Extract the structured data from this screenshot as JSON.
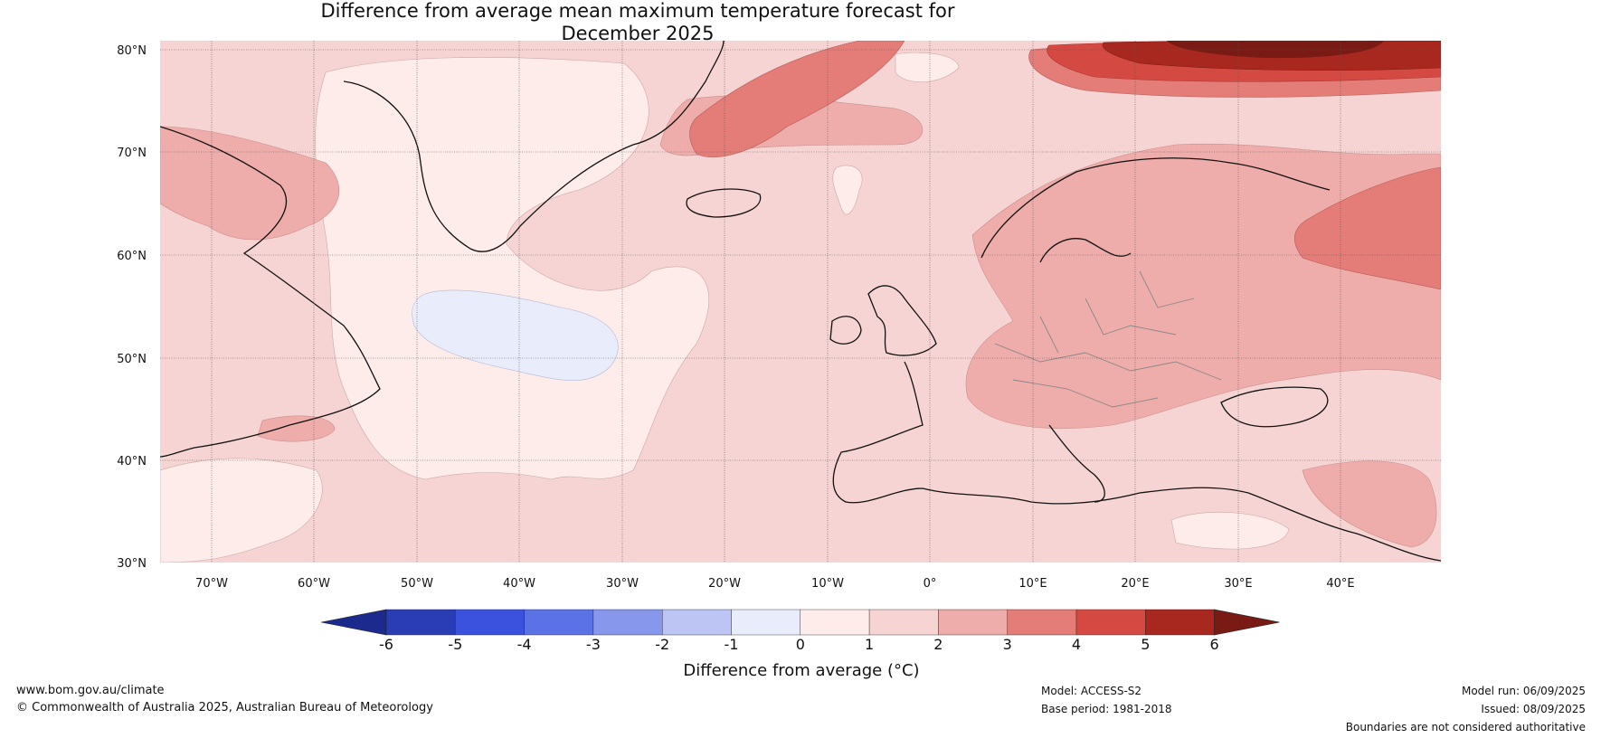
{
  "title_line1": "Difference from average mean maximum temperature forecast for",
  "title_line2": "December 2025",
  "lat_ticks": [
    "80°N",
    "70°N",
    "60°N",
    "50°N",
    "40°N",
    "30°N"
  ],
  "lon_ticks": [
    "70°W",
    "60°W",
    "50°W",
    "40°W",
    "30°W",
    "20°W",
    "10°W",
    "0°",
    "10°E",
    "20°E",
    "30°E",
    "40°E"
  ],
  "legend": {
    "label": "Difference from average (°C)",
    "ticks": [
      "-6",
      "-5",
      "-4",
      "-3",
      "-2",
      "-1",
      "0",
      "1",
      "2",
      "3",
      "4",
      "5",
      "6"
    ],
    "colors": [
      "#1b2a8c",
      "#2a3db5",
      "#3a52dd",
      "#5b72e6",
      "#8797eb",
      "#bcc5f3",
      "#e9ecfb",
      "#fdecea",
      "#f6d4d3",
      "#eeadab",
      "#e47c78",
      "#d44a42",
      "#a8281f",
      "#7a1a14"
    ]
  },
  "footer": {
    "website": "www.bom.gov.au/climate",
    "copyright": "© Commonwealth of Australia 2025, Australian Bureau of Meteorology",
    "model": "Model: ACCESS-S2",
    "base_period": "Base period: 1981-2018",
    "model_run": "Model run: 06/09/2025",
    "issued": "Issued: 08/09/2025",
    "disclaimer": "Boundaries are not considered authoritative"
  }
}
